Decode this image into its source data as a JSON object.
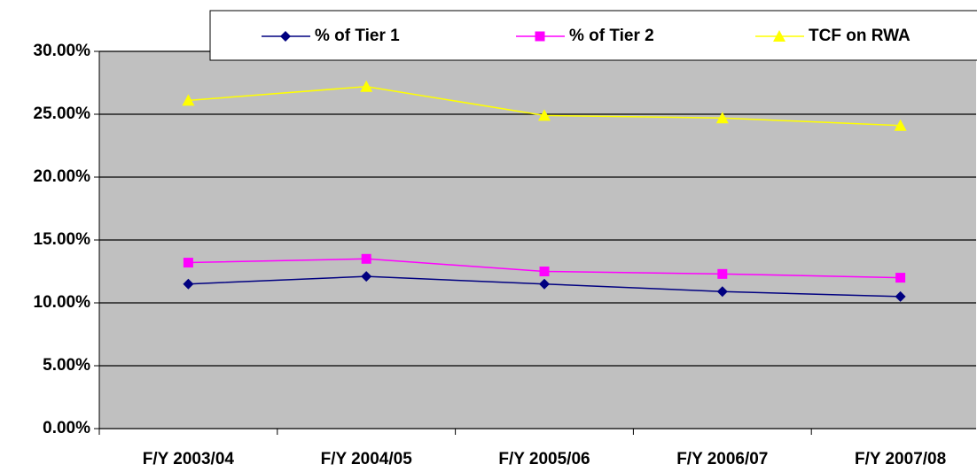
{
  "chart_data": {
    "type": "line",
    "categories": [
      "F/Y 2003/04",
      "F/Y 2004/05",
      "F/Y 2005/06",
      "F/Y 2006/07",
      "F/Y 2007/08"
    ],
    "series": [
      {
        "name": "% of Tier 1",
        "color": "#000080",
        "marker": "diamond",
        "values": [
          11.5,
          12.1,
          11.5,
          10.9,
          10.5
        ]
      },
      {
        "name": "% of Tier 2",
        "color": "#ff00ff",
        "marker": "square",
        "values": [
          13.2,
          13.5,
          12.5,
          12.3,
          12.0
        ]
      },
      {
        "name": "TCF on RWA",
        "color": "#ffff00",
        "marker": "triangle",
        "values": [
          26.1,
          27.2,
          24.9,
          24.7,
          24.1
        ]
      }
    ],
    "ylim": [
      0,
      30
    ],
    "yticks": [
      {
        "value": 0,
        "label": "0.00%"
      },
      {
        "value": 5,
        "label": "5.00%"
      },
      {
        "value": 10,
        "label": "10.00%"
      },
      {
        "value": 15,
        "label": "15.00%"
      },
      {
        "value": 20,
        "label": "20.00%"
      },
      {
        "value": 25,
        "label": "25.00%"
      },
      {
        "value": 30,
        "label": "30.00%"
      }
    ],
    "grid": true,
    "legend": "top"
  }
}
